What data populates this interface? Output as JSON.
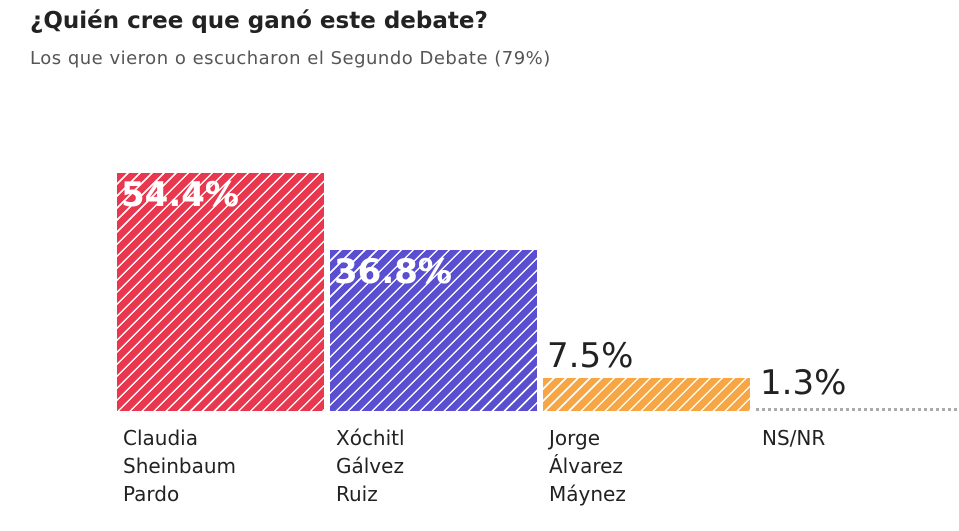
{
  "chart_data": {
    "type": "bar",
    "title": "¿Quién cree que ganó este debate?",
    "subtitle": "Los que vieron o escucharon el Segundo Debate (79%)",
    "categories": [
      "Claudia Sheinbaum Pardo",
      "Xóchitl Gálvez Ruiz",
      "Jorge Álvarez Máynez",
      "NS/NR"
    ],
    "values": [
      54.4,
      36.8,
      7.5,
      1.3
    ],
    "value_labels": [
      "54.4%",
      "36.8%",
      "7.5%",
      "1.3%"
    ],
    "colors": [
      "#e8384f",
      "#5a4fcf",
      "#f7a643",
      "#aaaaaa"
    ]
  }
}
